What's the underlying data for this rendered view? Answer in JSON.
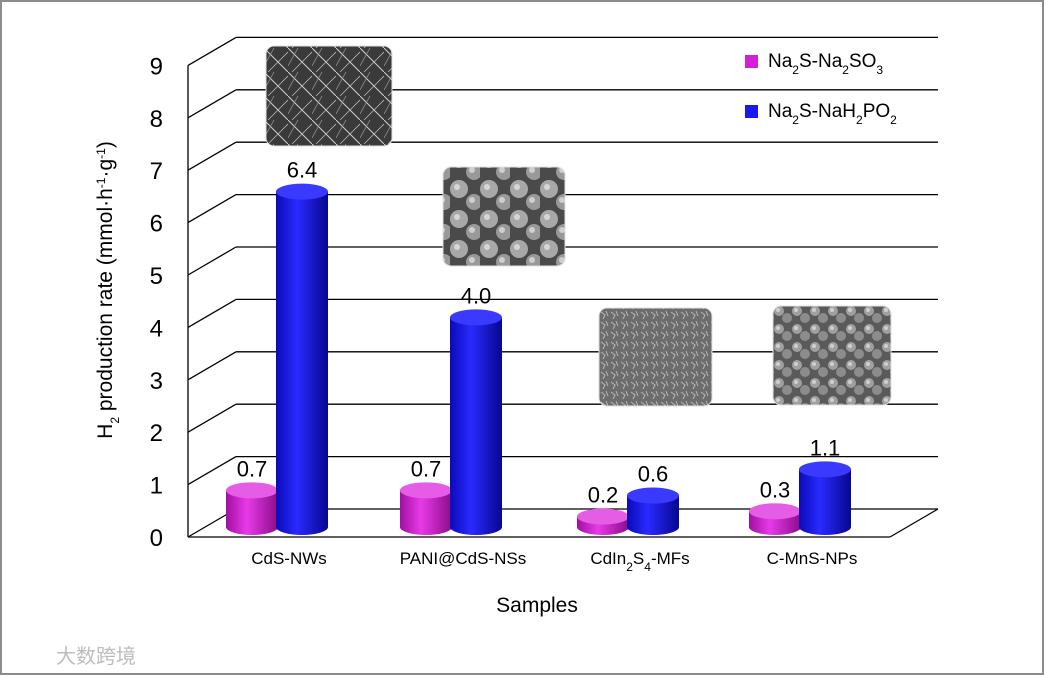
{
  "chart_data": {
    "type": "bar",
    "style": "3d-cylinder",
    "categories": [
      "CdS-NWs",
      "PANI@CdS-NSs",
      "CdIn2S4-MFs",
      "C-MnS-NPs"
    ],
    "category_labels": [
      [
        {
          "t": "CdS-NWs"
        }
      ],
      [
        {
          "t": "PANI@CdS-NSs"
        }
      ],
      [
        {
          "t": "CdIn"
        },
        {
          "t": "2",
          "sub": true
        },
        {
          "t": "S"
        },
        {
          "t": "4",
          "sub": true
        },
        {
          "t": "-MFs"
        }
      ],
      [
        {
          "t": "C-MnS-NPs"
        }
      ]
    ],
    "series": [
      {
        "name": "Na2S-Na2SO3",
        "color": "#d21fd2",
        "values": [
          0.7,
          0.7,
          0.2,
          0.3
        ],
        "value_labels": [
          "0.7",
          "0.7",
          "0.2",
          "0.3"
        ],
        "legend_label": [
          {
            "t": "Na"
          },
          {
            "t": "2",
            "sub": true
          },
          {
            "t": "S-Na"
          },
          {
            "t": "2",
            "sub": true
          },
          {
            "t": "SO"
          },
          {
            "t": "3",
            "sub": true
          }
        ]
      },
      {
        "name": "Na2S-NaH2PO2",
        "color": "#1a1aef",
        "values": [
          6.4,
          4.0,
          0.6,
          1.1
        ],
        "value_labels": [
          "6.4",
          "4.0",
          "0.6",
          "1.1"
        ],
        "legend_label": [
          {
            "t": "Na"
          },
          {
            "t": "2",
            "sub": true
          },
          {
            "t": "S-NaH"
          },
          {
            "t": "2",
            "sub": true
          },
          {
            "t": "PO"
          },
          {
            "t": "2",
            "sub": true
          }
        ]
      }
    ],
    "ylim": [
      0,
      9
    ],
    "yticks": [
      "0",
      "1",
      "2",
      "3",
      "4",
      "5",
      "6",
      "7",
      "8",
      "9"
    ],
    "xlabel": "Samples",
    "ylabel": [
      {
        "t": "H"
      },
      {
        "t": "2",
        "sub": true
      },
      {
        "t": " production rate (mmol·h"
      },
      {
        "t": "-1",
        "sup": true
      },
      {
        "t": "·g"
      },
      {
        "t": "-1",
        "sup": true
      },
      {
        "t": ")"
      }
    ],
    "grid": true,
    "legend_position": "top-right",
    "inset_images": [
      "SEM image of CdS nanowires",
      "SEM image of PANI@CdS nanospheres",
      "SEM image of CdIn2S4 microflowers",
      "SEM image of C-MnS nanoparticles"
    ]
  },
  "watermark": "大数跨境"
}
